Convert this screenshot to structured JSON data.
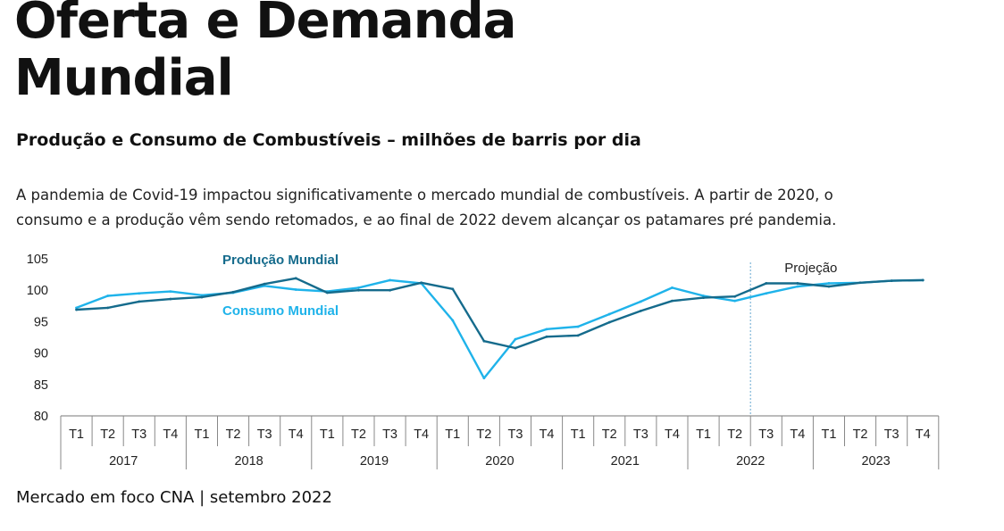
{
  "header": {
    "title_line1": "Oferta e Demanda",
    "title_line2": "Mundial",
    "subtitle": "Produção e Consumo de Combustíveis – milhões de barris por dia",
    "description_line1": "A pandemia de Covid-19 impactou significativamente o mercado mundial de combustíveis. A partir de 2020, o",
    "description_line2": "consumo e a produção vêm sendo retomados, e ao final de 2022 devem alcançar os patamares pré pandemia."
  },
  "footer": {
    "source": "Mercado em foco CNA | setembro 2022"
  },
  "chart_data": {
    "type": "line",
    "quarter_labels": [
      "T1",
      "T2",
      "T3",
      "T4"
    ],
    "years": [
      "2017",
      "2018",
      "2019",
      "2020",
      "2021",
      "2022",
      "2023"
    ],
    "categories": [
      "2017 T1",
      "2017 T2",
      "2017 T3",
      "2017 T4",
      "2018 T1",
      "2018 T2",
      "2018 T3",
      "2018 T4",
      "2019 T1",
      "2019 T2",
      "2019 T3",
      "2019 T4",
      "2020 T1",
      "2020 T2",
      "2020 T3",
      "2020 T4",
      "2021 T1",
      "2021 T2",
      "2021 T3",
      "2021 T4",
      "2022 T1",
      "2022 T2",
      "2022 T3",
      "2022 T4",
      "2023 T1",
      "2023 T2",
      "2023 T3",
      "2023 T4"
    ],
    "series": [
      {
        "name": "Produção Mundial",
        "color": "#156b8c",
        "values": [
          96.9,
          97.2,
          98.2,
          98.6,
          98.9,
          99.7,
          101.0,
          101.9,
          99.6,
          100.0,
          100.0,
          101.2,
          100.2,
          91.9,
          90.8,
          92.6,
          92.8,
          94.9,
          96.7,
          98.3,
          98.8,
          99.0,
          101.1,
          101.1,
          100.6,
          101.2,
          101.5,
          101.6
        ]
      },
      {
        "name": "Consumo Mundial",
        "color": "#1fb3ea",
        "values": [
          97.2,
          99.1,
          99.5,
          99.8,
          99.2,
          99.6,
          100.7,
          100.1,
          99.8,
          100.4,
          101.6,
          101.1,
          95.2,
          86.0,
          92.2,
          93.8,
          94.2,
          96.2,
          98.2,
          100.4,
          99.1,
          98.3,
          99.5,
          100.6,
          101.1,
          101.2,
          101.5,
          101.6
        ]
      }
    ],
    "ylim": [
      80,
      105
    ],
    "yticks": [
      80,
      85,
      90,
      95,
      100,
      105
    ],
    "projection_label": "Projeção",
    "projection_start": "2022 T3",
    "grid": false
  }
}
